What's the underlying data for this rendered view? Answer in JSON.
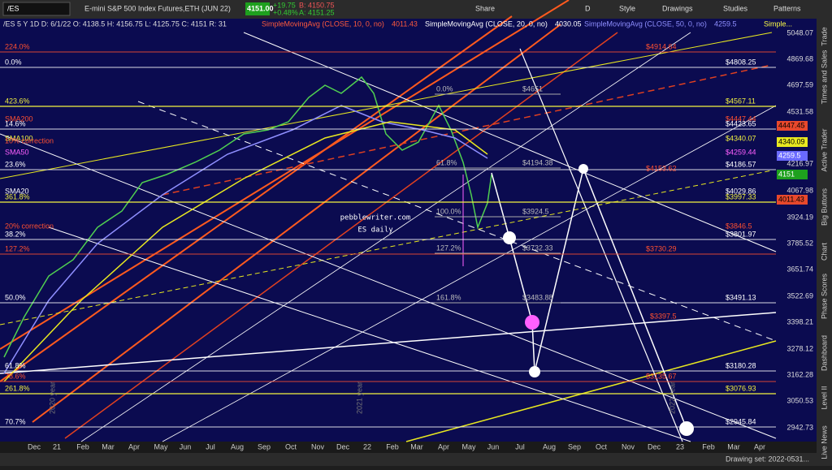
{
  "toolbar": {
    "symbol": "/ES",
    "description": "E-mini S&P 500 Index Futures,ETH (JUN 22)",
    "price": "4151.00",
    "change": "+19.75",
    "change_pct": "+0.48%",
    "bid": "B: 4150.75",
    "ask": "A: 4151.25",
    "buttons": [
      "Share",
      "D",
      "Style",
      "Drawings",
      "Studies",
      "Patterns"
    ]
  },
  "info_line": "/ES 5 Y 1D  D: 6/1/22  O: 4138.5  H: 4156.75  L: 4125.75  C: 4151  R: 31",
  "studies": [
    {
      "text": "SimpleMovingAvg (CLOSE, 10, 0, no)",
      "value": "4011.43",
      "color": "#ff5a3c"
    },
    {
      "text": "SimpleMovingAvg (CLOSE, 20, 0, no)",
      "value": "4030.05",
      "color": "#ffffff"
    },
    {
      "text": "SimpleMovingAvg (CLOSE, 50, 0, no)",
      "value": "4259.5",
      "color": "#8f8fff"
    },
    {
      "text": "Simple...",
      "value": "",
      "color": "#ffff44"
    }
  ],
  "price_axis": [
    "5048.07",
    "4869.68",
    "4697.59",
    "4531.58",
    "4216.97",
    "4067.98",
    "3924.19",
    "3785.52",
    "3651.74",
    "3522.69",
    "3398.21",
    "3278.12",
    "3162.28",
    "3050.53",
    "2942.73"
  ],
  "price_markers": [
    {
      "label": "4447.45",
      "color": "#e8482c"
    },
    {
      "label": "4340.09",
      "color": "#e8e820"
    },
    {
      "label": "4259.5",
      "color": "#6a6aff"
    },
    {
      "label": "4151",
      "color": "#1ea01e"
    },
    {
      "label": "4011.43",
      "color": "#e8482c"
    }
  ],
  "time_axis": [
    "Dec",
    "21",
    "Feb",
    "Mar",
    "Apr",
    "May",
    "Jun",
    "Jul",
    "Aug",
    "Sep",
    "Oct",
    "Nov",
    "Dec",
    "22",
    "Feb",
    "Mar",
    "Apr",
    "May",
    "Jun",
    "Jul",
    "Aug",
    "Sep",
    "Oct",
    "Nov",
    "Dec",
    "23",
    "Feb",
    "Mar",
    "Apr"
  ],
  "left_labels": [
    {
      "text": "224.0%",
      "color": "#ff5030"
    },
    {
      "text": "0.0%",
      "color": "#ffffff"
    },
    {
      "text": "423.6%",
      "color": "#f0f040"
    },
    {
      "text": "SMA200",
      "color": "#ff5030"
    },
    {
      "text": "14.6%",
      "color": "#ffffff"
    },
    {
      "text": "SMA100",
      "color": "#f0f040"
    },
    {
      "text": "10% correction",
      "color": "#ff5030"
    },
    {
      "text": "SMA50",
      "color": "#ff60ff"
    },
    {
      "text": "23.6%",
      "color": "#ffffff"
    },
    {
      "text": "SMA20",
      "color": "#ffffff"
    },
    {
      "text": "361.8%",
      "color": "#f0f040"
    },
    {
      "text": "20% correction",
      "color": "#ff5030"
    },
    {
      "text": "38.2%",
      "color": "#ffffff"
    },
    {
      "text": "127.2%",
      "color": "#ff5030"
    },
    {
      "text": "50.0%",
      "color": "#ffffff"
    },
    {
      "text": "61.8%",
      "color": "#ffffff"
    },
    {
      "text": "78.6%",
      "color": "#ff5030"
    },
    {
      "text": "261.8%",
      "color": "#f0f040"
    },
    {
      "text": "70.7%",
      "color": "#ffffff"
    }
  ],
  "right_labels": [
    {
      "text": "$4914.64",
      "color": "#ff5030"
    },
    {
      "text": "$4808.25",
      "color": "#ffffff"
    },
    {
      "text": "$4567.11",
      "color": "#f0f040"
    },
    {
      "text": "$4447.44",
      "color": "#ff5030"
    },
    {
      "text": "$4423.65",
      "color": "#ffffff"
    },
    {
      "text": "$4340.07",
      "color": "#f0f040"
    },
    {
      "text": "$4259.44",
      "color": "#ff60ff"
    },
    {
      "text": "$4186.57",
      "color": "#ffffff"
    },
    {
      "text": "$4153.62",
      "color": "#ff5030"
    },
    {
      "text": "$4029.86",
      "color": "#ffffff"
    },
    {
      "text": "$3997.33",
      "color": "#f0f040"
    },
    {
      "text": "$3846.5",
      "color": "#ff5030"
    },
    {
      "text": "$3801.97",
      "color": "#ffffff"
    },
    {
      "text": "$3730.29",
      "color": "#ff5030"
    },
    {
      "text": "$3491.13",
      "color": "#ffffff"
    },
    {
      "text": "$3397.5",
      "color": "#ff5030"
    },
    {
      "text": "$3180.28",
      "color": "#ffffff"
    },
    {
      "text": "$3135.67",
      "color": "#ff5030"
    },
    {
      "text": "$3076.93",
      "color": "#f0f040"
    },
    {
      "text": "$2945.84",
      "color": "#ffffff"
    }
  ],
  "fib_labels": [
    {
      "pct": "0.0%",
      "price": "$4651"
    },
    {
      "pct": "61.8%",
      "price": "$4194.38"
    },
    {
      "pct": "100.0%",
      "price": "$3924.5"
    },
    {
      "pct": "127.2%",
      "price": "$3732.33"
    },
    {
      "pct": "161.8%",
      "price": "$3483.88"
    }
  ],
  "watermark": [
    "pebblewriter.com",
    "ES daily"
  ],
  "year_marks": [
    "2020 year",
    "2021 year",
    "2022 year"
  ],
  "side_tabs": [
    "Trade",
    "Times and Sales",
    "Active Trader",
    "Big Buttons",
    "Chart",
    "Phase Scores",
    "Dashboard",
    "Level II",
    "Live News"
  ],
  "status": "Drawing set: 2022-0531..."
}
